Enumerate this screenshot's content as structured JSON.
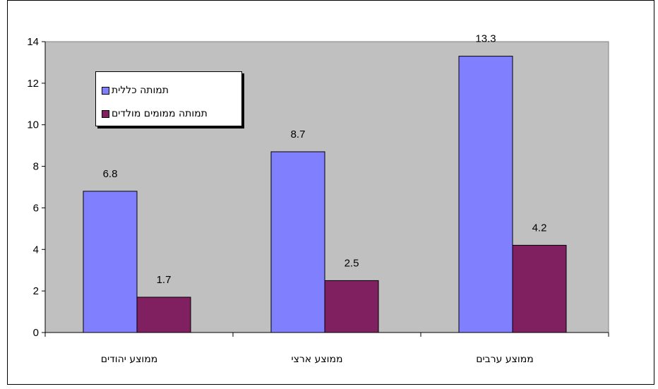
{
  "chart_data": {
    "type": "bar",
    "title": "",
    "xlabel": "",
    "ylabel": "",
    "categories": [
      "ממוצע יהודים",
      "ממוצע ארצי",
      "ממוצע ערבים"
    ],
    "series": [
      {
        "name": "תמותה כללית",
        "values": [
          6.8,
          8.7,
          13.3
        ],
        "labels": [
          "6.8",
          "8.7",
          "13.3"
        ],
        "color": "#8080ff"
      },
      {
        "name": "תמותה ממומים מולדים",
        "values": [
          1.7,
          2.5,
          4.2
        ],
        "labels": [
          "1.7",
          "2.5",
          "4.2"
        ],
        "color": "#802060"
      }
    ],
    "ylim": [
      0,
      14
    ],
    "yticks": [
      0,
      2,
      4,
      6,
      8,
      10,
      12,
      14
    ],
    "ytick_labels": [
      "0",
      "2",
      "4",
      "6",
      "8",
      "10",
      "12",
      "14"
    ],
    "grid": false,
    "plot_background": "#c0c0c0",
    "legend_position": "top-left"
  }
}
